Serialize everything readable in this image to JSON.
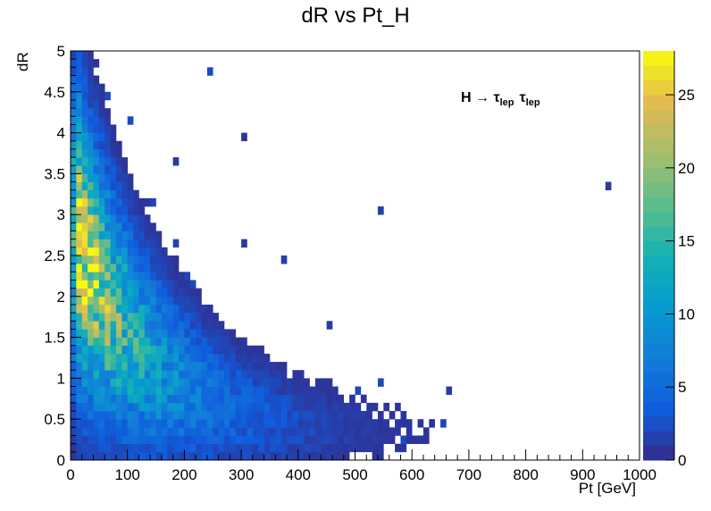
{
  "chart_data": {
    "type": "heatmap",
    "title": "dR vs Pt_H",
    "xlabel": "Pt [GeV]",
    "ylabel": "dR",
    "xlim": [
      0,
      1000
    ],
    "ylim": [
      0,
      5
    ],
    "x_ticks": [
      0,
      100,
      200,
      300,
      400,
      500,
      600,
      700,
      800,
      900,
      1000
    ],
    "y_ticks": [
      0,
      0.5,
      1,
      1.5,
      2,
      2.5,
      3,
      3.5,
      4,
      4.5,
      5
    ],
    "y_tick_labels": [
      "0",
      "0.5",
      "1",
      "1.5",
      "2",
      "2.5",
      "3",
      "3.5",
      "4",
      "4.5",
      "5"
    ],
    "colorbar": {
      "min": 0,
      "max": 28,
      "ticks": [
        0,
        5,
        10,
        15,
        20,
        25
      ]
    },
    "bins": {
      "x": 100,
      "y": 50
    },
    "annotation": {
      "main": "H →",
      "tau": "τ",
      "sub": "lep"
    },
    "distribution": "counts concentrated at low Pt (20–150 GeV) with dR roughly 0.8–3; dR decreases as Pt increases; sparse tail to 1000 GeV at dR < 0.6; peak bin about 28"
  }
}
